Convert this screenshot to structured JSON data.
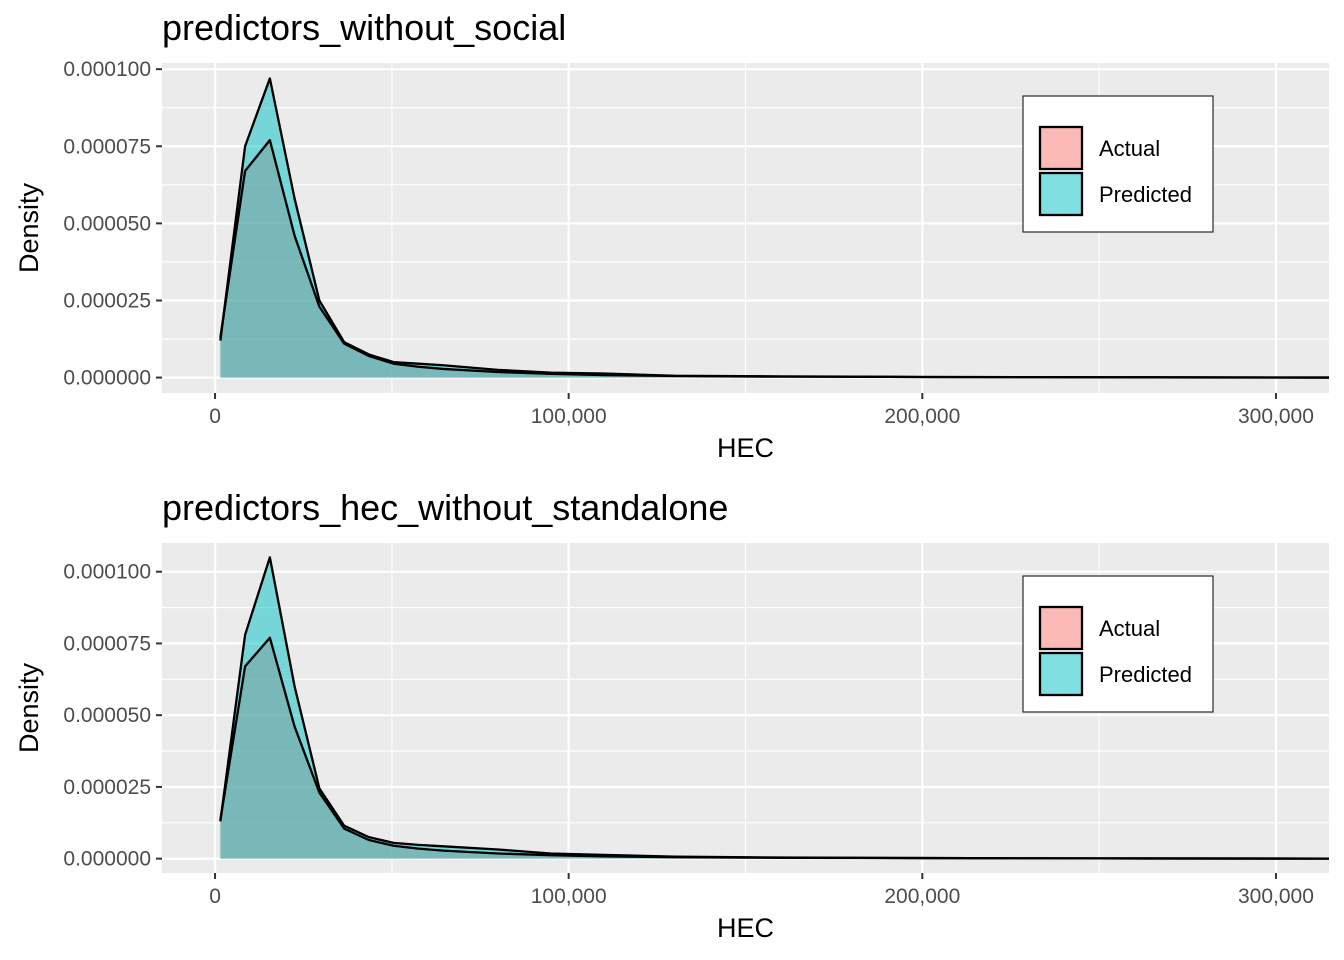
{
  "colors": {
    "actual_fill": "#F8766D",
    "predicted_fill": "#00BFC4",
    "panel_bg": "#EBEBEB",
    "gridline": "#FFFFFF",
    "tick_label": "#4D4D4D",
    "outline": "#000000"
  },
  "chart_data": [
    {
      "type": "area",
      "title": "predictors_without_social",
      "xlabel": "HEC",
      "ylabel": "Density",
      "xlim": [
        -15000,
        315000
      ],
      "ylim": [
        -5e-06,
        0.000102
      ],
      "x_ticks": [
        0,
        100000,
        200000,
        300000
      ],
      "x_tick_labels": [
        "0",
        "100,000",
        "200,000",
        "300,000"
      ],
      "y_ticks": [
        0,
        2.5e-05,
        5e-05,
        7.5e-05,
        0.0001
      ],
      "y_tick_labels": [
        "0.000000",
        "0.000025",
        "0.000050",
        "0.000075",
        "0.000100"
      ],
      "grid": true,
      "legend": {
        "position": "top-right",
        "entries": [
          "Actual",
          "Predicted"
        ]
      },
      "series": [
        {
          "name": "Actual",
          "x": [
            1500,
            8500,
            15500,
            22500,
            29500,
            36500,
            43500,
            50500,
            57500,
            64500,
            80000,
            95000,
            110000,
            130000,
            160000,
            200000,
            250000,
            315000
          ],
          "values": [
            1.3e-05,
            6.7e-05,
            7.7e-05,
            4.6e-05,
            2.3e-05,
            1.1e-05,
            7e-06,
            4.5e-06,
            3.5e-06,
            2.8e-06,
            1.8e-06,
            1.2e-06,
            8e-07,
            5e-07,
            3e-07,
            2e-07,
            1e-07,
            0.0
          ]
        },
        {
          "name": "Predicted",
          "x": [
            1500,
            8500,
            15500,
            22500,
            29500,
            36500,
            43500,
            50500,
            57500,
            64500,
            80000,
            95000,
            110000,
            130000,
            160000,
            200000,
            250000,
            315000
          ],
          "values": [
            1.2e-05,
            7.5e-05,
            9.7e-05,
            5.8e-05,
            2.5e-05,
            1.15e-05,
            7.5e-06,
            5e-06,
            4.5e-06,
            4e-06,
            2.5e-06,
            1.6e-06,
            1.3e-06,
            6e-07,
            4e-07,
            2e-07,
            1e-07,
            0.0
          ]
        }
      ]
    },
    {
      "type": "area",
      "title": "predictors_hec_without_standalone",
      "xlabel": "HEC",
      "ylabel": "Density",
      "xlim": [
        -15000,
        315000
      ],
      "ylim": [
        -5e-06,
        0.00011
      ],
      "x_ticks": [
        0,
        100000,
        200000,
        300000
      ],
      "x_tick_labels": [
        "0",
        "100,000",
        "200,000",
        "300,000"
      ],
      "y_ticks": [
        0,
        2.5e-05,
        5e-05,
        7.5e-05,
        0.0001
      ],
      "y_tick_labels": [
        "0.000000",
        "0.000025",
        "0.000050",
        "0.000075",
        "0.000100"
      ],
      "grid": true,
      "legend": {
        "position": "top-right",
        "entries": [
          "Actual",
          "Predicted"
        ]
      },
      "series": [
        {
          "name": "Actual",
          "x": [
            1500,
            8500,
            15500,
            22500,
            29500,
            36500,
            43500,
            50500,
            57500,
            64500,
            80000,
            95000,
            110000,
            130000,
            160000,
            200000,
            250000,
            315000
          ],
          "values": [
            1.35e-05,
            6.7e-05,
            7.7e-05,
            4.6e-05,
            2.3e-05,
            1.05e-05,
            6.5e-06,
            4.5e-06,
            3.5e-06,
            2.8e-06,
            1.8e-06,
            1.2e-06,
            8e-07,
            5e-07,
            3e-07,
            2e-07,
            1e-07,
            0.0
          ]
        },
        {
          "name": "Predicted",
          "x": [
            1500,
            8500,
            15500,
            22500,
            29500,
            36500,
            43500,
            50500,
            57500,
            64500,
            80000,
            95000,
            110000,
            130000,
            160000,
            200000,
            250000,
            315000
          ],
          "values": [
            1.3e-05,
            7.8e-05,
            0.000105,
            6e-05,
            2.45e-05,
            1.15e-05,
            7.5e-06,
            5.5e-06,
            4.8e-06,
            4.3e-06,
            3.2e-06,
            1.8e-06,
            1.3e-06,
            7e-07,
            4e-07,
            2e-07,
            1e-07,
            0.0
          ]
        }
      ]
    }
  ]
}
